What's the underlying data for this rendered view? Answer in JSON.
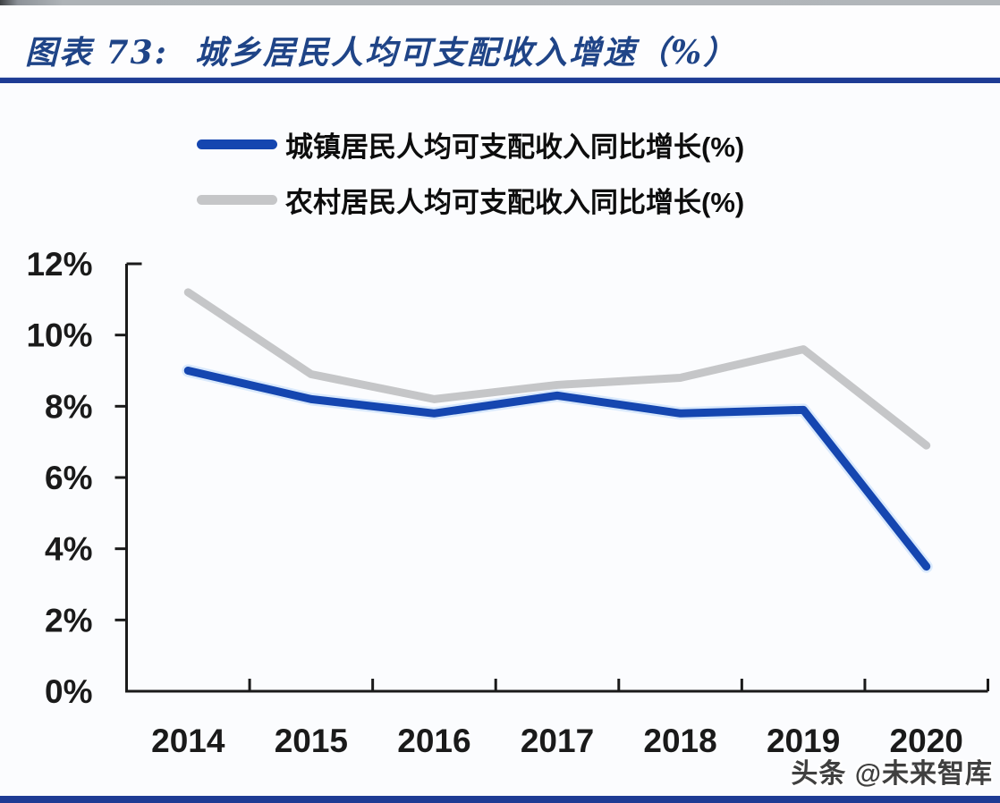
{
  "header": {
    "title_prefix": "图表 73:",
    "title_main": "城乡居民人均可支配收入增速（%）"
  },
  "footer": {
    "watermark": "头条 @未来智库"
  },
  "colors": {
    "accent_navy": "#1e3b94",
    "title_navy": "#1f4487",
    "axis_black": "#1a1a1a",
    "urban_blue": "#1546b0",
    "rural_gray": "#c5c6c8"
  },
  "chart_data": {
    "type": "line",
    "title": "城乡居民人均可支配收入增速（%）",
    "categories": [
      "2014",
      "2015",
      "2016",
      "2017",
      "2018",
      "2019",
      "2020"
    ],
    "series": [
      {
        "name": "城镇居民人均可支配收入同比增长(%)",
        "color": "#1546b0",
        "halo": "#d9e9fc",
        "values": [
          9.0,
          8.2,
          7.8,
          8.3,
          7.8,
          7.9,
          3.5
        ]
      },
      {
        "name": "农村居民人均可支配收入同比增长(%)",
        "color": "#c5c6c8",
        "halo": "",
        "values": [
          11.2,
          8.9,
          8.2,
          8.6,
          8.8,
          9.6,
          6.9
        ]
      }
    ],
    "xlabel": "",
    "ylabel": "",
    "ylim": [
      0,
      12
    ],
    "ytick_step": 2,
    "ytick_labels": [
      "0%",
      "2%",
      "4%",
      "6%",
      "8%",
      "10%",
      "12%"
    ],
    "legend_position": "top",
    "grid": false
  }
}
